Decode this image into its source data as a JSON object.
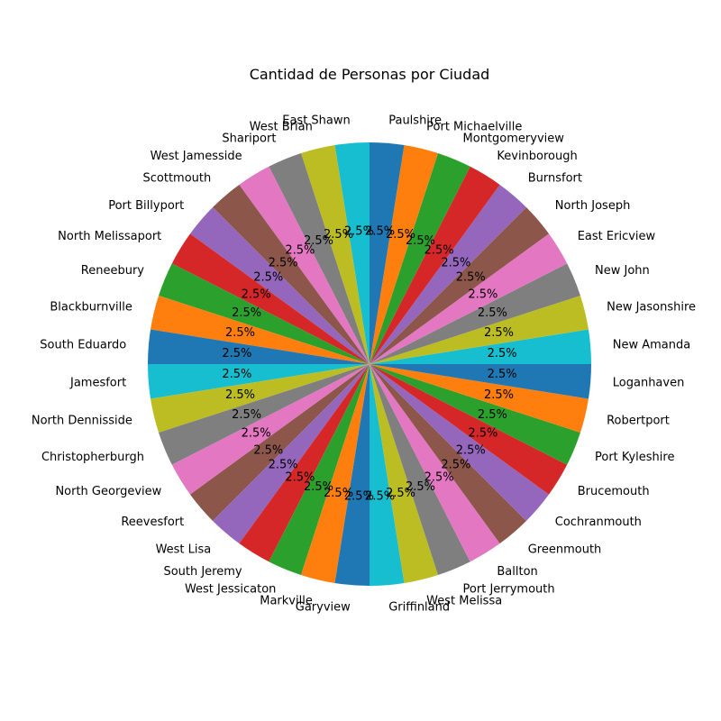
{
  "chart_data": {
    "type": "pie",
    "title": "Cantidad de Personas por Ciudad",
    "categories": [
      "East Shawn",
      "West Brian",
      "Shariport",
      "West Jamesside",
      "Scottmouth",
      "Port Billyport",
      "North Melissaport",
      "Reneebury",
      "Blackburnville",
      "South Eduardo",
      "Jamesfort",
      "North Dennisside",
      "Christopherburgh",
      "North Georgeview",
      "Reevesfort",
      "West Lisa",
      "South Jeremy",
      "West Jessicaton",
      "Markville",
      "Garyview",
      "Griffinland",
      "West Melissa",
      "Port Jerrymouth",
      "Ballton",
      "Greenmouth",
      "Cochranmouth",
      "Brucemouth",
      "Port Kyleshire",
      "Robertport",
      "Loganhaven",
      "New Amanda",
      "New Jasonshire",
      "New John",
      "East Ericview",
      "North Joseph",
      "Burnsfort",
      "Kevinborough",
      "Montgomeryview",
      "Port Michaelville",
      "Paulshire"
    ],
    "values": [
      1,
      1,
      1,
      1,
      1,
      1,
      1,
      1,
      1,
      1,
      1,
      1,
      1,
      1,
      1,
      1,
      1,
      1,
      1,
      1,
      1,
      1,
      1,
      1,
      1,
      1,
      1,
      1,
      1,
      1,
      1,
      1,
      1,
      1,
      1,
      1,
      1,
      1,
      1,
      1
    ],
    "percent_labels": [
      "2.5%",
      "2.5%",
      "2.5%",
      "2.5%",
      "2.5%",
      "2.5%",
      "2.5%",
      "2.5%",
      "2.5%",
      "2.5%",
      "2.5%",
      "2.5%",
      "2.5%",
      "2.5%",
      "2.5%",
      "2.5%",
      "2.5%",
      "2.5%",
      "2.5%",
      "2.5%",
      "2.5%",
      "2.5%",
      "2.5%",
      "2.5%",
      "2.5%",
      "2.5%",
      "2.5%",
      "2.5%",
      "2.5%",
      "2.5%",
      "2.5%",
      "2.5%",
      "2.5%",
      "2.5%",
      "2.5%",
      "2.5%",
      "2.5%",
      "2.5%",
      "2.5%",
      "2.5%"
    ],
    "colors": [
      "#17becf",
      "#bcbd22",
      "#7f7f7f",
      "#e377c2",
      "#8c564b",
      "#9467bd",
      "#d62728",
      "#2ca02c",
      "#ff7f0e",
      "#1f77b4",
      "#17becf",
      "#bcbd22",
      "#7f7f7f",
      "#e377c2",
      "#8c564b",
      "#9467bd",
      "#d62728",
      "#2ca02c",
      "#ff7f0e",
      "#1f77b4",
      "#17becf",
      "#bcbd22",
      "#7f7f7f",
      "#e377c2",
      "#8c564b",
      "#9467bd",
      "#d62728",
      "#2ca02c",
      "#ff7f0e",
      "#1f77b4",
      "#17becf",
      "#bcbd22",
      "#7f7f7f",
      "#e377c2",
      "#8c564b",
      "#9467bd",
      "#d62728",
      "#2ca02c",
      "#ff7f0e",
      "#1f77b4"
    ],
    "legend": "none"
  }
}
